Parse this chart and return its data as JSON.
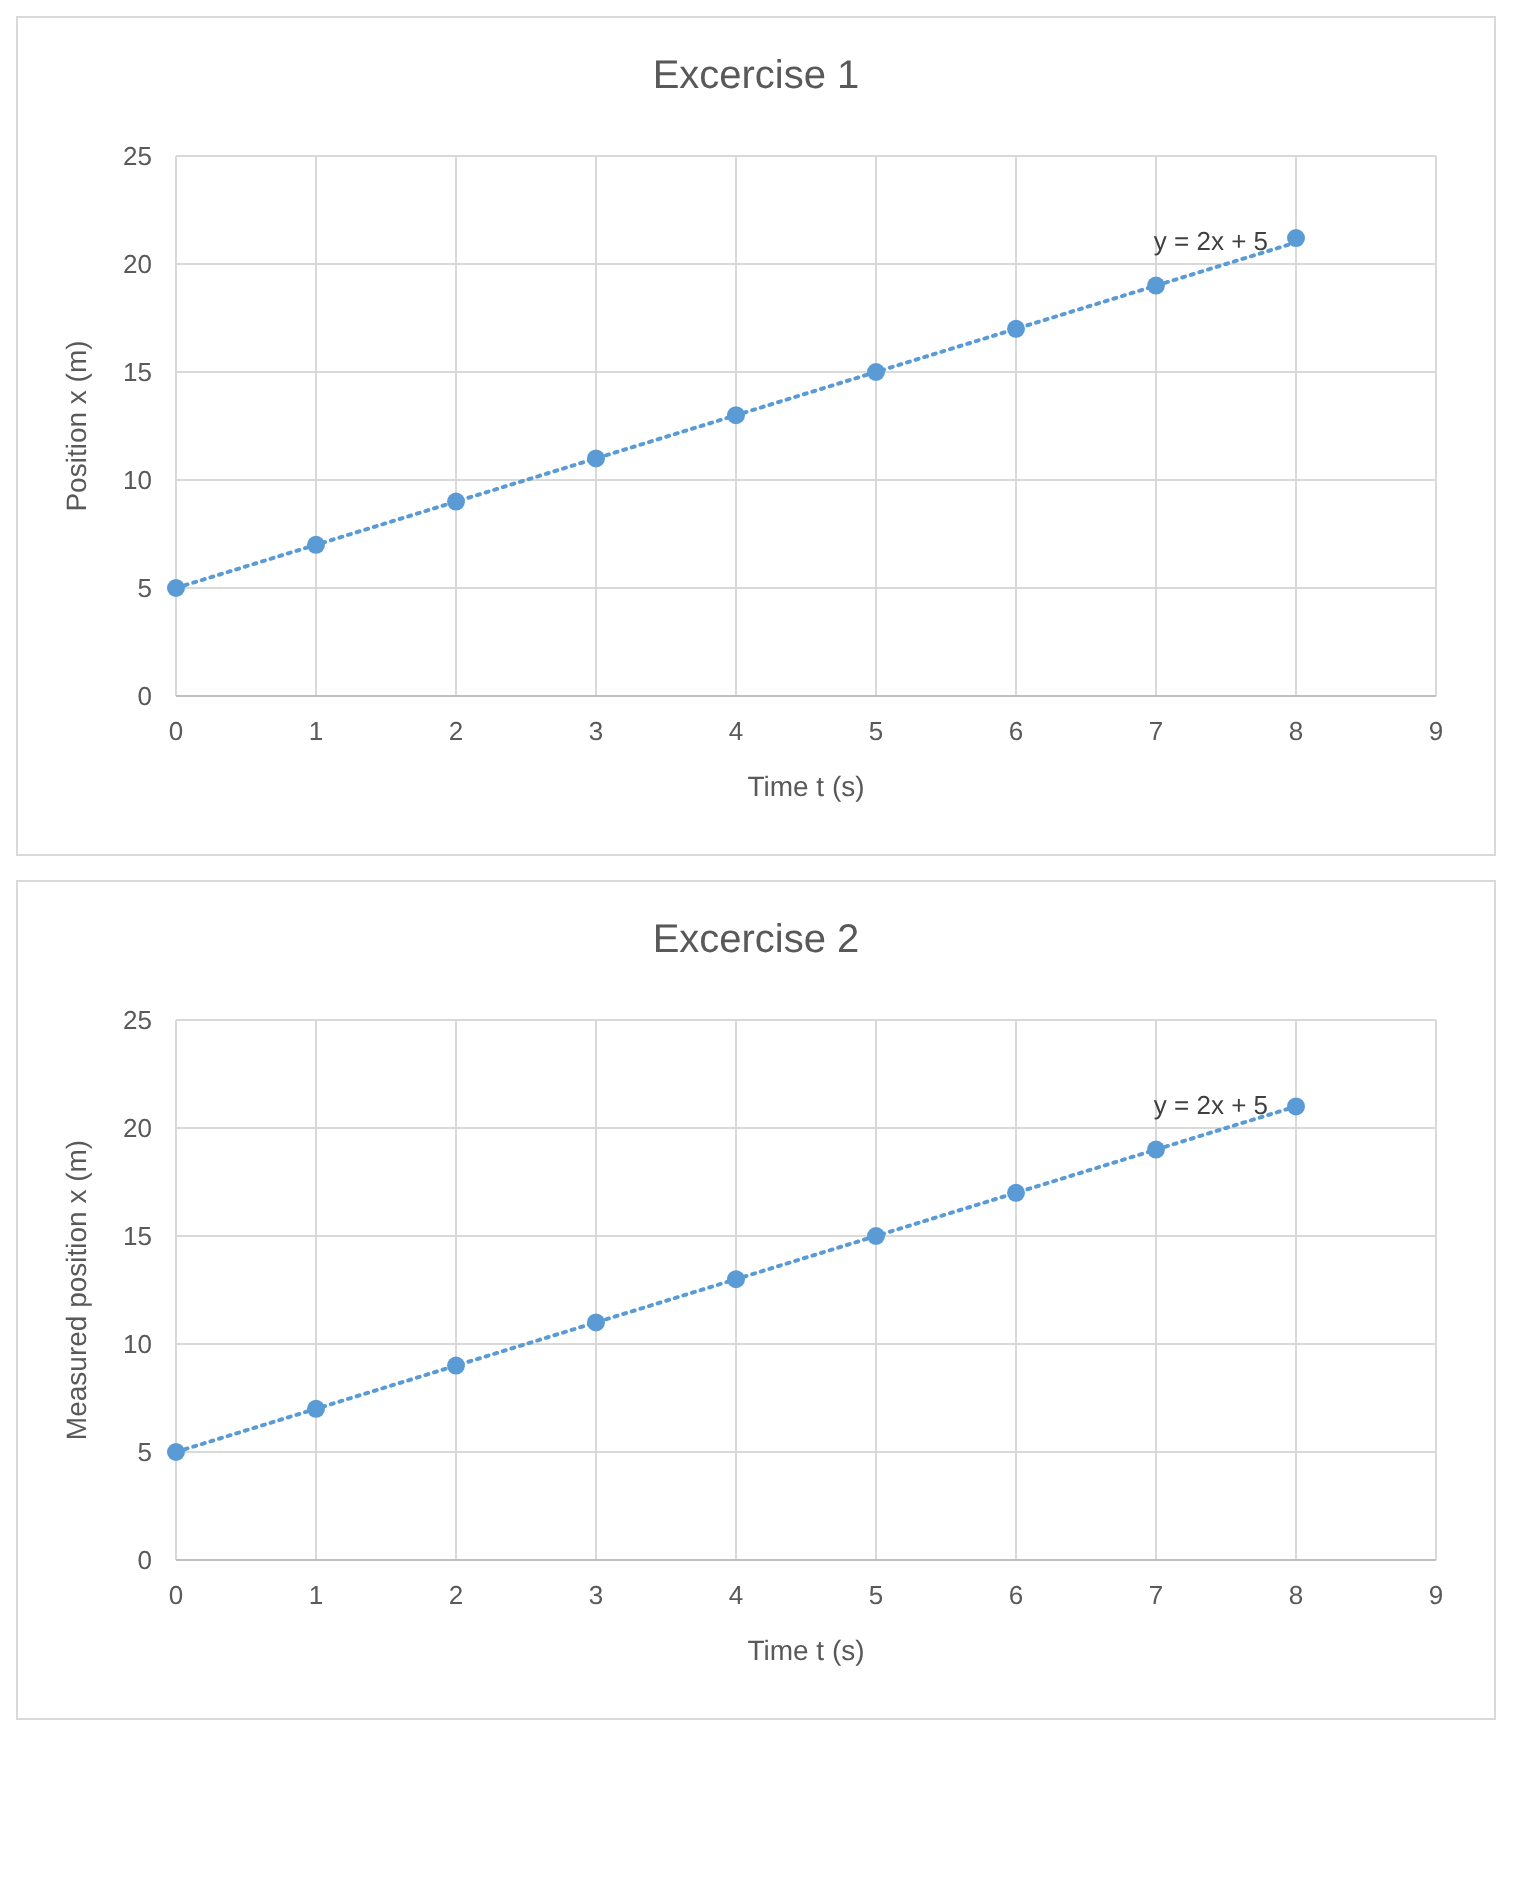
{
  "chart_data": [
    {
      "type": "scatter",
      "title": "Excercise 1",
      "xlabel": "Time t (s)",
      "ylabel": "Position x (m)",
      "xlim": [
        0,
        9
      ],
      "ylim": [
        0,
        25
      ],
      "xticks": [
        0,
        1,
        2,
        3,
        4,
        5,
        6,
        7,
        8,
        9
      ],
      "yticks": [
        0,
        5,
        10,
        15,
        20,
        25
      ],
      "grid": true,
      "series": [
        {
          "color": "#5b9bd5",
          "marker": "circle",
          "x": [
            0,
            1,
            2,
            3,
            4,
            5,
            6,
            7,
            8
          ],
          "values": [
            5,
            7,
            9,
            11,
            13,
            15,
            17,
            19,
            21.2
          ]
        },
        {
          "type": "line",
          "color": "#5b9bd5",
          "marker": "none",
          "line_style": "dotted",
          "x": [
            0,
            8
          ],
          "values": [
            5,
            21
          ]
        }
      ],
      "annotations": [
        {
          "text": "y = 2x + 5",
          "x": 8,
          "y": 21
        }
      ]
    },
    {
      "type": "scatter",
      "title": "Excercise 2",
      "xlabel": "Time t (s)",
      "ylabel": "Measured position x (m)",
      "xlim": [
        0,
        9
      ],
      "ylim": [
        0,
        25
      ],
      "xticks": [
        0,
        1,
        2,
        3,
        4,
        5,
        6,
        7,
        8,
        9
      ],
      "yticks": [
        0,
        5,
        10,
        15,
        20,
        25
      ],
      "grid": true,
      "series": [
        {
          "color": "#5b9bd5",
          "marker": "circle",
          "x": [
            0,
            1,
            2,
            3,
            4,
            5,
            6,
            7,
            8
          ],
          "values": [
            5,
            7,
            9,
            11,
            13,
            15,
            17,
            19,
            21
          ]
        },
        {
          "type": "line",
          "color": "#5b9bd5",
          "marker": "none",
          "line_style": "dotted",
          "x": [
            0,
            8
          ],
          "values": [
            5,
            21
          ]
        }
      ],
      "annotations": [
        {
          "text": "y = 2x + 5",
          "x": 8,
          "y": 21
        }
      ]
    }
  ]
}
